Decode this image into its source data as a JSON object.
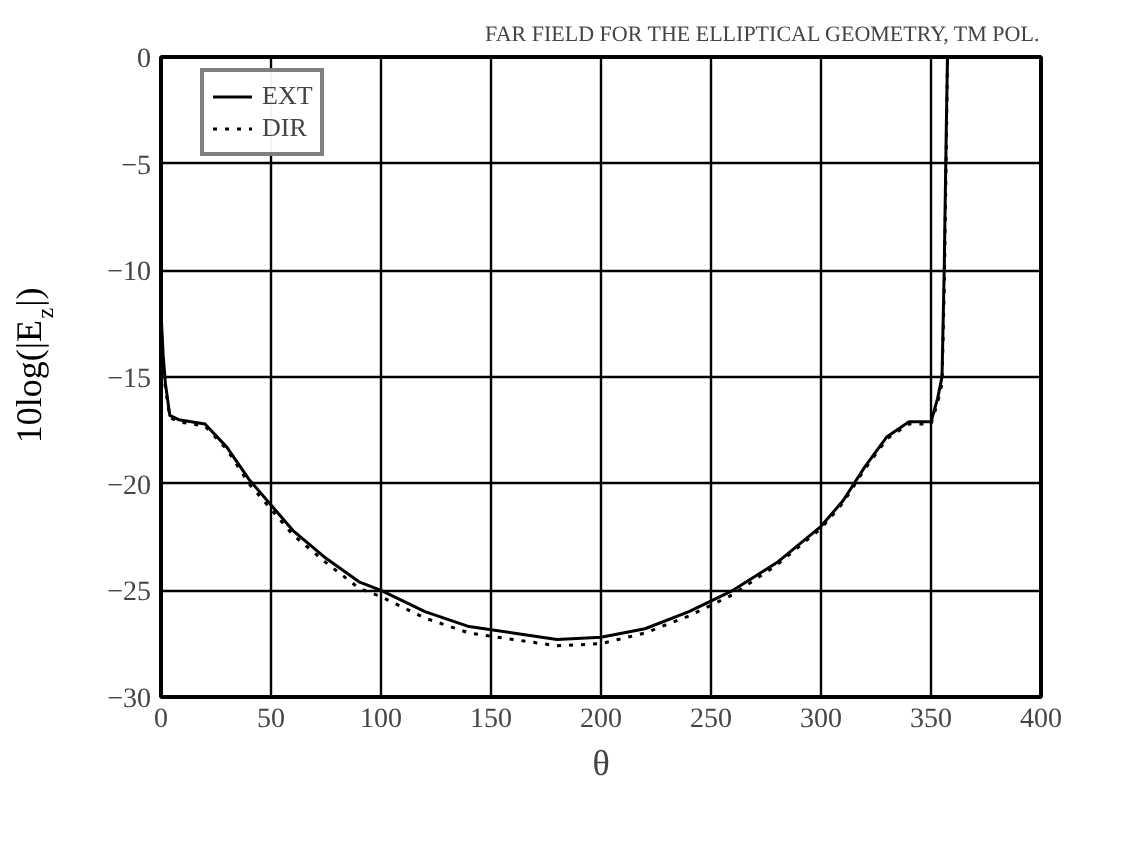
{
  "chart_data": {
    "type": "line",
    "title": "FAR FIELD FOR THE ELLIPTICAL GEOMETRY, TM POL.",
    "xlabel": "θ",
    "ylabel": "10log(|E$_{z}$|)",
    "xlim": [
      0,
      400
    ],
    "ylim": [
      -30,
      0
    ],
    "xticks": [
      0,
      50,
      100,
      150,
      200,
      250,
      300,
      350,
      400
    ],
    "yticks": [
      -30,
      -25,
      -20,
      -15,
      -10,
      -5,
      0
    ],
    "grid": true,
    "legend": "top left",
    "series": [
      {
        "name": "EXT",
        "color": "#000000",
        "line_style": "solid",
        "x": [
          0,
          1,
          2,
          4,
          8,
          20,
          30,
          40,
          50,
          60,
          75,
          90,
          100,
          120,
          140,
          160,
          180,
          200,
          220,
          240,
          260,
          280,
          300,
          310,
          320,
          330,
          340,
          350,
          353,
          355,
          356,
          357,
          357.5
        ],
        "values": [
          -12,
          -14,
          -15.3,
          -16.8,
          -17.0,
          -17.2,
          -18.3,
          -19.8,
          -21.0,
          -22.2,
          -23.5,
          -24.6,
          -25.0,
          -26.0,
          -26.7,
          -27.0,
          -27.3,
          -27.2,
          -26.8,
          -26.0,
          -25.0,
          -23.7,
          -22.0,
          -20.8,
          -19.2,
          -17.8,
          -17.1,
          -17.1,
          -16,
          -15,
          -10,
          -3,
          0
        ]
      },
      {
        "name": "DIR",
        "color": "#000000",
        "line_style": "dotted",
        "x": [
          0,
          1,
          2,
          4,
          8,
          20,
          30,
          40,
          50,
          60,
          75,
          90,
          100,
          120,
          140,
          160,
          180,
          200,
          220,
          240,
          260,
          280,
          300,
          310,
          320,
          330,
          340,
          350,
          353,
          355,
          356,
          357,
          357.5
        ],
        "values": [
          -12.5,
          -14.5,
          -15.5,
          -16.9,
          -17.1,
          -17.3,
          -18.4,
          -20.0,
          -21.2,
          -22.4,
          -23.7,
          -24.9,
          -25.3,
          -26.3,
          -27.0,
          -27.3,
          -27.6,
          -27.5,
          -27.0,
          -26.2,
          -25.2,
          -23.8,
          -22.1,
          -20.9,
          -19.3,
          -17.9,
          -17.2,
          -17.2,
          -16.2,
          -15.3,
          -11,
          -4,
          0
        ]
      }
    ]
  }
}
